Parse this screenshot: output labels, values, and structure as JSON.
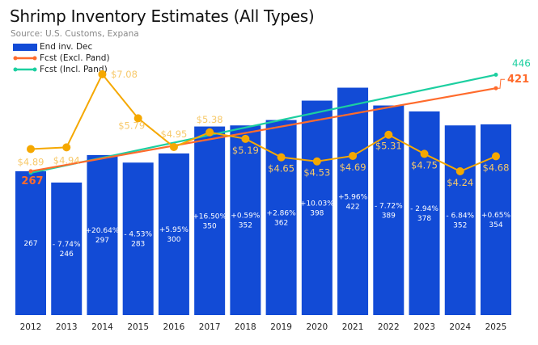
{
  "chart_data": {
    "type": "bar",
    "title": "Shrimp Inventory Estimates (All Types)",
    "subtitle": "Source: U.S. Customs, Expana",
    "categories": [
      "2012",
      "2013",
      "2014",
      "2015",
      "2016",
      "2017",
      "2018",
      "2019",
      "2020",
      "2021",
      "2022",
      "2023",
      "2024",
      "2025"
    ],
    "legend_placement": "top-left",
    "grid": false,
    "series": [
      {
        "name": "End inv. Dec",
        "kind": "bar",
        "color": "#124bd6",
        "values": [
          267,
          246,
          297,
          283,
          300,
          350,
          352,
          362,
          398,
          422,
          389,
          378,
          352,
          354
        ],
        "change_labels": [
          "",
          "- 7.74%",
          "+20.64%",
          "- 4.53%",
          "+5.95%",
          "+16.50%",
          "+0.59%",
          "+2.86%",
          "+10.03%",
          "+5.96%",
          "- 7.72%",
          "- 2.94%",
          "- 6.84%",
          "+0.65%"
        ]
      },
      {
        "name": "Fcst (Excl. Pand)",
        "kind": "line",
        "color": "#ff6b2c",
        "start": {
          "x": "2012",
          "y": 267
        },
        "end": {
          "x": "2025",
          "y": 421
        },
        "start_label": "267",
        "end_label": "421"
      },
      {
        "name": "Fcst (Incl. Pand)",
        "kind": "line",
        "color": "#1ccfa0",
        "start": {
          "x": "2012",
          "y": 267
        },
        "end": {
          "x": "2025",
          "y": 446
        },
        "end_label": "446"
      },
      {
        "name": "",
        "kind": "line",
        "color": "#f5a800",
        "label_color": "#f7c96a",
        "values": [
          4.89,
          4.94,
          7.08,
          5.79,
          4.95,
          5.38,
          5.19,
          4.65,
          4.53,
          4.69,
          5.31,
          4.75,
          4.24,
          4.68
        ],
        "labels": [
          "$4.89",
          "$4.94",
          "$7.08",
          "$5.79",
          "$4.95",
          "$5.38",
          "$5.19",
          "$4.65",
          "$4.53",
          "$4.69",
          "$5.31",
          "$4.75",
          "$4.24",
          "$4.68"
        ]
      }
    ]
  }
}
